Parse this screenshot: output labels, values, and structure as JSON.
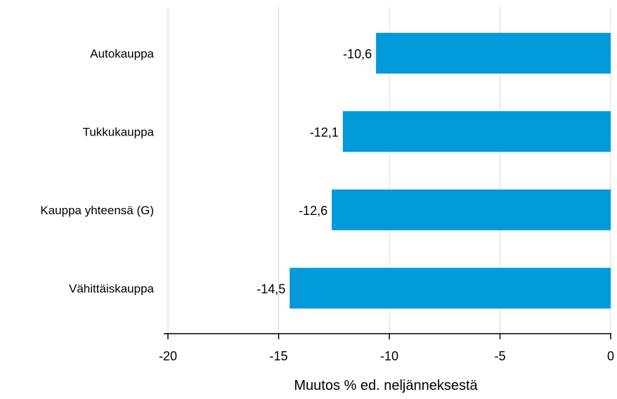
{
  "chart_data": {
    "type": "bar",
    "orientation": "horizontal",
    "categories": [
      "Autokauppa",
      "Tukkukauppa",
      "Kauppa yhteensä (G)",
      "Vähittäiskauppa"
    ],
    "values": [
      -10.6,
      -12.1,
      -12.6,
      -14.5
    ],
    "value_labels": [
      "-10,6",
      "-12,1",
      "-12,6",
      "-14,5"
    ],
    "title": "",
    "xlabel": "Muutos % ed. neljänneksestä",
    "ylabel": "",
    "xlim": [
      -20,
      0
    ],
    "xticks": [
      -20,
      -15,
      -10,
      -5,
      0
    ],
    "xtick_labels": [
      "-20",
      "-15",
      "-10",
      "-5",
      "0"
    ],
    "grid": "vertical",
    "legend": "none",
    "colors": {
      "bar": "#0099da",
      "grid": "#d9d9d9",
      "axis": "#000000"
    }
  }
}
